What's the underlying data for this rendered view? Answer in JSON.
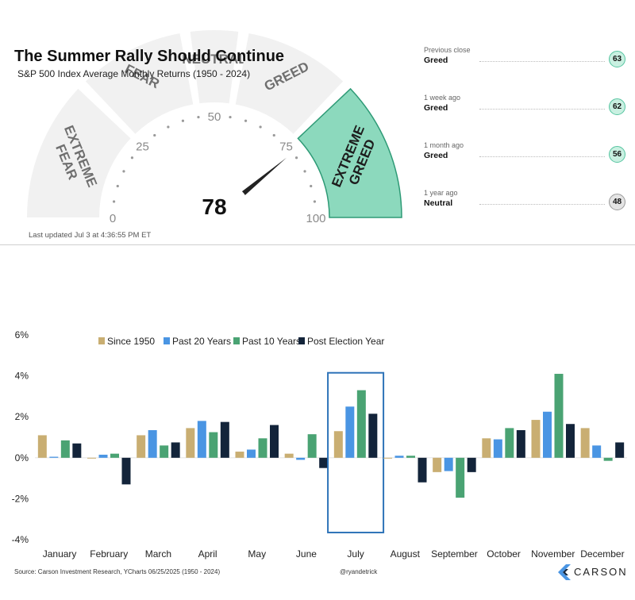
{
  "gauge": {
    "value": 78,
    "value_label": "78",
    "needle_value": 78,
    "sections": [
      {
        "label": "EXTREME FEAR",
        "lines": [
          "EXTREME",
          "FEAR"
        ],
        "from": 0,
        "to": 25,
        "active": false
      },
      {
        "label": "FEAR",
        "lines": [
          "FEAR"
        ],
        "from": 25,
        "to": 45,
        "active": false
      },
      {
        "label": "NEUTRAL",
        "lines": [
          "NEUTRAL"
        ],
        "from": 45,
        "to": 55,
        "active": false
      },
      {
        "label": "GREED",
        "lines": [
          "GREED"
        ],
        "from": 55,
        "to": 75,
        "active": false
      },
      {
        "label": "EXTREME GREED",
        "lines": [
          "EXTREME",
          "GREED"
        ],
        "from": 75,
        "to": 100,
        "active": true
      }
    ],
    "ticks": [
      "0",
      "25",
      "50",
      "75",
      "100"
    ],
    "colors": {
      "inactive": "#f1f1f1",
      "active": "#8cd9bd",
      "active_border": "#2e9a76",
      "needle": "#222222"
    },
    "updated": "Last updated Jul 3 at 4:36:55 PM ET"
  },
  "history": [
    {
      "label": "Previous close",
      "rating": "Greed",
      "value": "63",
      "color": "#c9f0e1",
      "border": "#55c4a0"
    },
    {
      "label": "1 week ago",
      "rating": "Greed",
      "value": "62",
      "color": "#c9f0e1",
      "border": "#55c4a0"
    },
    {
      "label": "1 month ago",
      "rating": "Greed",
      "value": "56",
      "color": "#c9f0e1",
      "border": "#55c4a0"
    },
    {
      "label": "1 year ago",
      "rating": "Neutral",
      "value": "48",
      "color": "#e4e4e4",
      "border": "#9a9a9a"
    }
  ],
  "chart": {
    "title": "The Summer Rally Should Continue",
    "subtitle": "S&P 500 Index Average Monthly Returns (1950 - 2024)",
    "source": "Source: Carson Investment Research, YCharts 06/25/2025 (1950 - 2024)",
    "handle": "@ryandetrick",
    "brand": "CARSON"
  },
  "chart_data": {
    "type": "bar",
    "categories": [
      "January",
      "February",
      "March",
      "April",
      "May",
      "June",
      "July",
      "August",
      "September",
      "October",
      "November",
      "December"
    ],
    "series": [
      {
        "name": "Since 1950",
        "color": "#c9ae72",
        "values": [
          1.1,
          0.0,
          1.1,
          1.45,
          0.3,
          0.2,
          1.3,
          0.0,
          -0.7,
          0.95,
          1.85,
          1.45
        ]
      },
      {
        "name": "Past 20 Years",
        "color": "#4a95e3",
        "values": [
          0.05,
          0.15,
          1.35,
          1.8,
          0.4,
          -0.1,
          2.5,
          0.1,
          -0.65,
          0.9,
          2.25,
          0.6
        ]
      },
      {
        "name": "Past 10 Years",
        "color": "#4aa373",
        "values": [
          0.85,
          0.2,
          0.6,
          1.25,
          0.95,
          1.15,
          3.3,
          0.1,
          -1.95,
          1.45,
          4.1,
          -0.15
        ]
      },
      {
        "name": "Post Election Year",
        "color": "#13243a",
        "values": [
          0.7,
          -1.3,
          0.75,
          1.75,
          1.6,
          -0.5,
          2.15,
          -1.2,
          -0.7,
          1.35,
          1.65,
          0.75
        ]
      }
    ],
    "ylim": [
      -4,
      6
    ],
    "yticks": [
      "-4%",
      "-2%",
      "0%",
      "2%",
      "4%",
      "6%"
    ],
    "highlight": "July",
    "highlight_color": "#2e73b8",
    "legend_position": "top-center",
    "grid": false
  }
}
